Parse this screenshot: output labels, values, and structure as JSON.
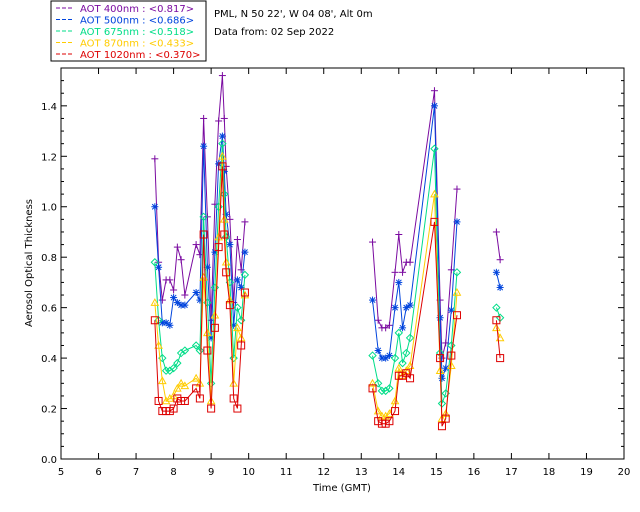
{
  "chart_data": {
    "type": "line",
    "info_lines": [
      "PML, N 50 22', W 04 08', Alt 0m",
      "Data from: 02 Sep 2022"
    ],
    "xlabel": "Time (GMT)",
    "ylabel": "Aerosol Optical Thickness",
    "xlim": [
      5,
      20
    ],
    "ylim": [
      0,
      1.55
    ],
    "xticks": [
      5,
      6,
      7,
      8,
      9,
      10,
      11,
      12,
      13,
      14,
      15,
      16,
      17,
      18,
      19,
      20
    ],
    "yticks": [
      0.0,
      0.2,
      0.4,
      0.6,
      0.8,
      1.0,
      1.2,
      1.4
    ],
    "ytick_labels": [
      "0.0",
      "0.2",
      "0.4",
      "0.6",
      "0.8",
      "1.0",
      "1.2",
      "1.4"
    ],
    "x": [
      7.5,
      7.6,
      7.7,
      7.8,
      7.9,
      8.0,
      8.1,
      8.2,
      8.3,
      8.6,
      8.7,
      8.8,
      8.9,
      9.0,
      9.1,
      9.2,
      9.3,
      9.35,
      9.4,
      9.5,
      9.6,
      9.7,
      9.8,
      9.9,
      13.3,
      13.45,
      13.55,
      13.65,
      13.75,
      13.9,
      14.0,
      14.1,
      14.2,
      14.3,
      14.95,
      15.1,
      15.15,
      15.25,
      15.4,
      15.55,
      16.6,
      16.7
    ],
    "series": [
      {
        "name": "AOT  400nm : <0.817>",
        "color": "#7a0aa0",
        "marker": "plus",
        "values": [
          1.19,
          0.78,
          0.63,
          0.71,
          0.71,
          0.67,
          0.84,
          0.79,
          0.65,
          0.85,
          0.81,
          1.35,
          0.96,
          0.55,
          1.01,
          1.34,
          1.52,
          1.35,
          1.16,
          0.95,
          0.62,
          0.87,
          0.75,
          0.94,
          0.86,
          0.55,
          0.52,
          0.52,
          0.53,
          0.74,
          0.89,
          0.74,
          0.78,
          0.78,
          1.46,
          0.63,
          0.4,
          0.46,
          0.75,
          1.07,
          0.9,
          0.79
        ]
      },
      {
        "name": "AOT  500nm : <0.686>",
        "color": "#0044dd",
        "marker": "star",
        "values": [
          1.0,
          0.76,
          0.54,
          0.54,
          0.53,
          0.64,
          0.62,
          0.61,
          0.61,
          0.66,
          0.63,
          1.24,
          0.76,
          0.48,
          0.82,
          1.17,
          1.28,
          1.14,
          0.97,
          0.85,
          0.53,
          0.71,
          0.68,
          0.82,
          0.63,
          0.43,
          0.4,
          0.4,
          0.41,
          0.6,
          0.7,
          0.52,
          0.6,
          0.61,
          1.4,
          0.56,
          0.32,
          0.36,
          0.59,
          0.94,
          0.74,
          0.68
        ]
      },
      {
        "name": "AOT  675nm : <0.518>",
        "color": "#00dd88",
        "marker": "diamond",
        "values": [
          0.78,
          0.55,
          0.4,
          0.35,
          0.35,
          0.36,
          0.38,
          0.42,
          0.43,
          0.45,
          0.43,
          0.96,
          0.62,
          0.3,
          0.68,
          1.0,
          1.25,
          1.05,
          0.88,
          0.7,
          0.4,
          0.6,
          0.55,
          0.73,
          0.41,
          0.3,
          0.27,
          0.27,
          0.28,
          0.4,
          0.5,
          0.38,
          0.42,
          0.48,
          1.23,
          0.42,
          0.22,
          0.26,
          0.45,
          0.74,
          0.6,
          0.56
        ]
      },
      {
        "name": "AOT  870nm : <0.433>",
        "color": "#ffcc00",
        "marker": "triangle",
        "values": [
          0.62,
          0.45,
          0.31,
          0.23,
          0.24,
          0.25,
          0.28,
          0.3,
          0.29,
          0.32,
          0.3,
          0.72,
          0.5,
          0.23,
          0.57,
          0.88,
          1.2,
          0.95,
          0.78,
          0.63,
          0.3,
          0.52,
          0.48,
          0.65,
          0.3,
          0.19,
          0.17,
          0.17,
          0.18,
          0.23,
          0.36,
          0.33,
          0.35,
          0.37,
          1.05,
          0.35,
          0.16,
          0.18,
          0.37,
          0.66,
          0.52,
          0.48
        ]
      },
      {
        "name": "AOT 1020nm : <0.370>",
        "color": "#dd0000",
        "marker": "square",
        "values": [
          0.55,
          0.23,
          0.19,
          0.19,
          0.19,
          0.2,
          0.24,
          0.23,
          0.23,
          0.28,
          0.24,
          0.89,
          0.43,
          0.2,
          0.52,
          0.84,
          1.16,
          0.89,
          0.74,
          0.61,
          0.24,
          0.2,
          0.45,
          0.66,
          0.28,
          0.15,
          0.14,
          0.14,
          0.15,
          0.19,
          0.33,
          0.33,
          0.34,
          0.32,
          0.94,
          0.4,
          0.13,
          0.16,
          0.41,
          0.57,
          0.55,
          0.4
        ]
      }
    ]
  }
}
